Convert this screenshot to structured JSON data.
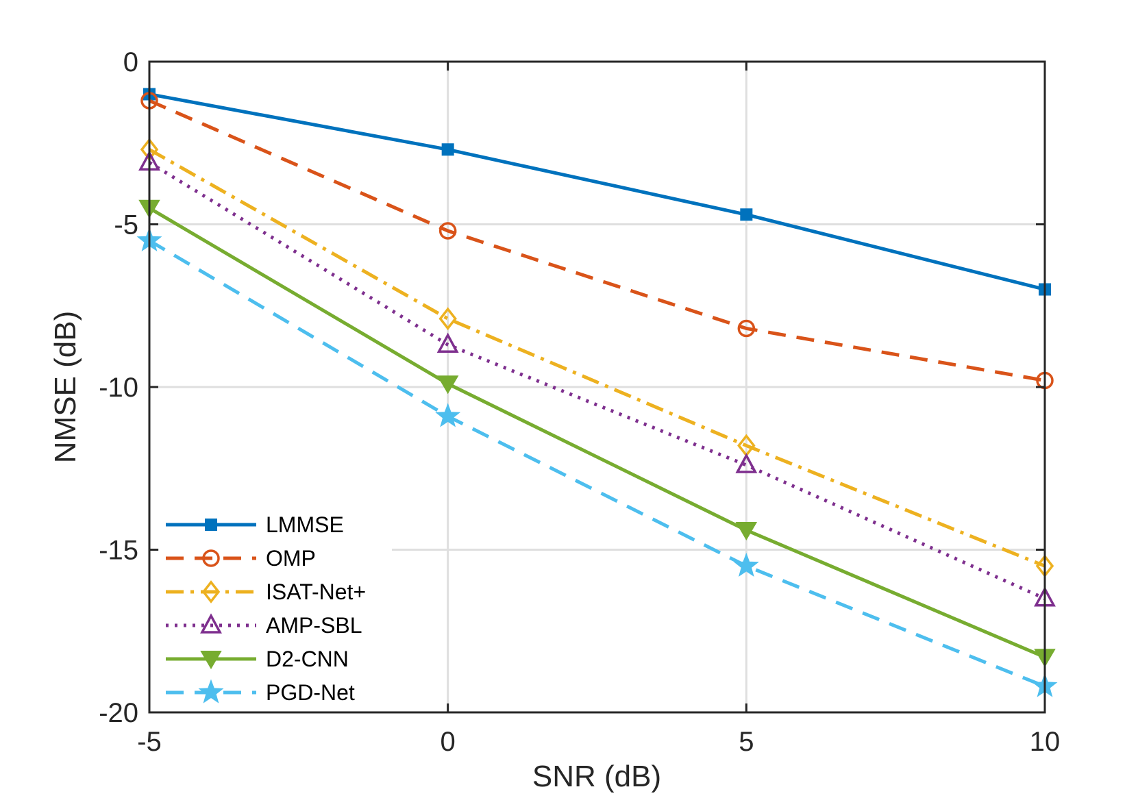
{
  "chart_data": {
    "type": "line",
    "title": "",
    "xlabel": "SNR (dB)",
    "ylabel": "NMSE (dB)",
    "xlim": [
      -5,
      10
    ],
    "ylim": [
      -20,
      0
    ],
    "xticks": [
      -5,
      0,
      5,
      10
    ],
    "yticks": [
      0,
      -5,
      -10,
      -15,
      -20
    ],
    "grid": true,
    "legend_position": "bottom-left",
    "x": [
      -5,
      0,
      5,
      10
    ],
    "series": [
      {
        "name": "LMMSE",
        "values": [
          -1.0,
          -2.7,
          -4.7,
          -7.0
        ],
        "color": "#0072BD",
        "dash": "solid",
        "marker": "square"
      },
      {
        "name": "OMP",
        "values": [
          -1.2,
          -5.2,
          -8.2,
          -9.8
        ],
        "color": "#D95319",
        "dash": "dashed",
        "marker": "circle"
      },
      {
        "name": "ISAT-Net+",
        "values": [
          -2.7,
          -7.9,
          -11.8,
          -15.5
        ],
        "color": "#EDB120",
        "dash": "dashdot",
        "marker": "diamond"
      },
      {
        "name": "AMP-SBL",
        "values": [
          -3.1,
          -8.7,
          -12.4,
          -16.5
        ],
        "color": "#7E2F8E",
        "dash": "dotted",
        "marker": "triangle-up"
      },
      {
        "name": "D2-CNN",
        "values": [
          -4.5,
          -9.9,
          -14.4,
          -18.3
        ],
        "color": "#77AC30",
        "dash": "solid",
        "marker": "triangle-down"
      },
      {
        "name": "PGD-Net",
        "values": [
          -5.5,
          -10.9,
          -15.5,
          -19.2
        ],
        "color": "#4DBEEE",
        "dash": "dashed",
        "marker": "star"
      }
    ]
  }
}
